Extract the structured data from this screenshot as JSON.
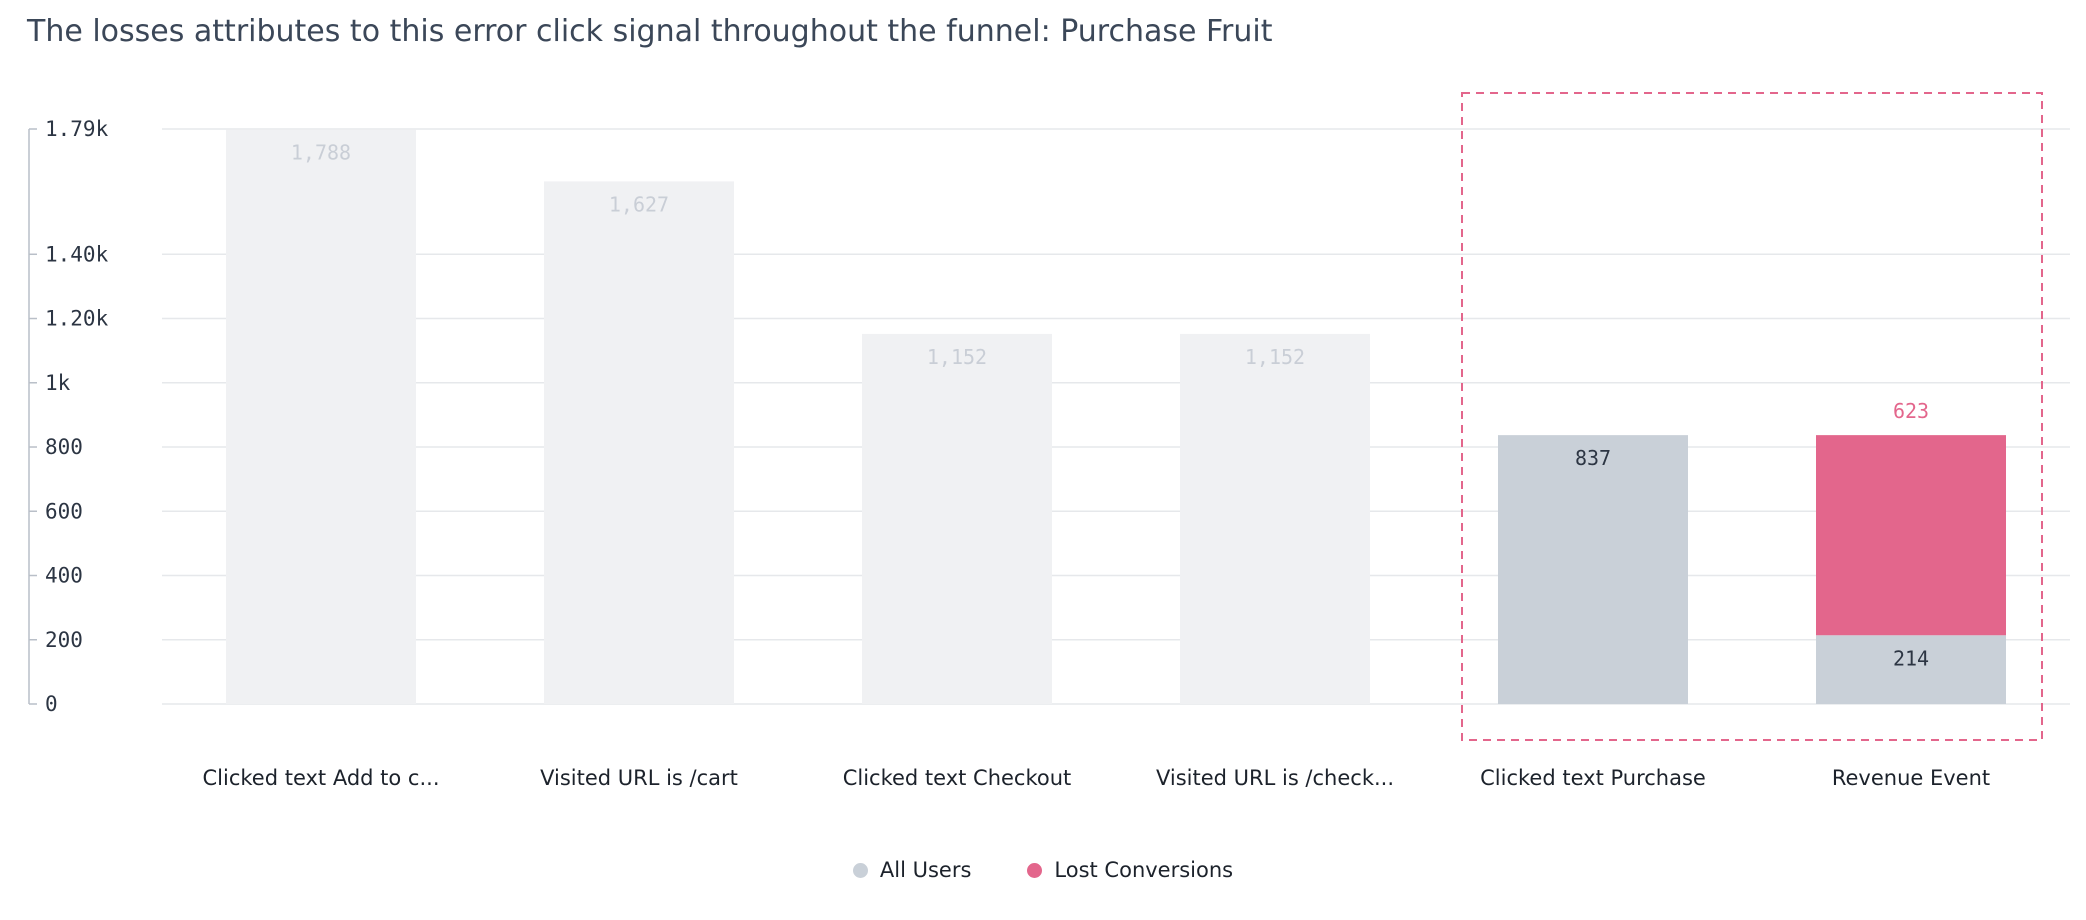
{
  "title": "The losses attributes to this error click signal throughout the funnel: Purchase Fruit",
  "colors": {
    "faded_bar": "#f0f1f3",
    "all_users": "#c9d0d8",
    "lost_conversions": "#e3668c",
    "faded_label": "#c9ced6",
    "label_dark": "#2c3543",
    "highlight_border": "#e3668c",
    "grid": "#e6e8eb"
  },
  "chart_data": {
    "type": "bar",
    "stacked": true,
    "title": "The losses attributes to this error click signal throughout the funnel: Purchase Fruit",
    "categories": [
      "Clicked text Add to c...",
      "Visited URL is /cart",
      "Clicked text Checkout",
      "Visited URL is /check...",
      "Clicked text Purchase",
      "Revenue Event"
    ],
    "series": [
      {
        "name": "All Users",
        "values": [
          1788,
          1627,
          1152,
          1152,
          837,
          214
        ]
      },
      {
        "name": "Lost Conversions",
        "values": [
          0,
          0,
          0,
          0,
          0,
          623
        ]
      }
    ],
    "value_labels": [
      "1,788",
      "1,627",
      "1,152",
      "1,152",
      "837",
      "214"
    ],
    "lost_label": "623",
    "faded_categories": [
      0,
      1,
      2,
      3
    ],
    "highlighted_categories": [
      4,
      5
    ],
    "y_ticks": [
      {
        "value": 0,
        "label": "0"
      },
      {
        "value": 200,
        "label": "200"
      },
      {
        "value": 400,
        "label": "400"
      },
      {
        "value": 600,
        "label": "600"
      },
      {
        "value": 800,
        "label": "800"
      },
      {
        "value": 1000,
        "label": "1k"
      },
      {
        "value": 1200,
        "label": "1.20k"
      },
      {
        "value": 1400,
        "label": "1.40k"
      },
      {
        "value": 1790,
        "label": "1.79k"
      }
    ],
    "ylim": [
      0,
      1790
    ],
    "grid": true,
    "legend_position": "bottom-center"
  },
  "legend": [
    {
      "label": "All Users",
      "color": "#c9d0d8"
    },
    {
      "label": "Lost Conversions",
      "color": "#e3668c"
    }
  ]
}
